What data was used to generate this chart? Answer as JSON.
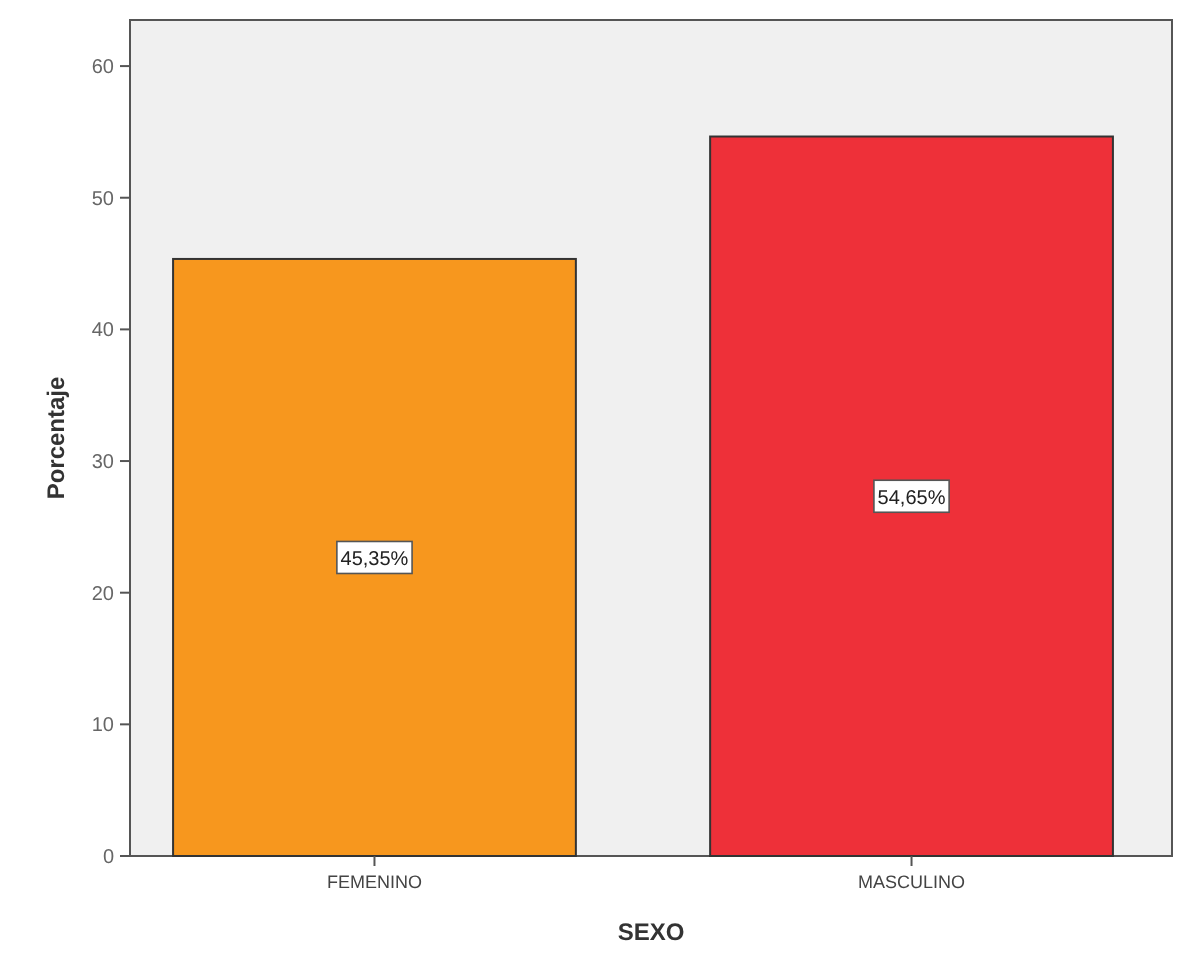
{
  "chart_data": {
    "type": "bar",
    "xlabel": "SEXO",
    "ylabel": "Porcentaje",
    "categories": [
      "FEMENINO",
      "MASCULINO"
    ],
    "values": [
      45.35,
      54.65
    ],
    "colors": [
      "#f7971e",
      "#ee3039"
    ],
    "value_labels": [
      "45,35%",
      "54,65%"
    ],
    "ylim": [
      0,
      63.5
    ],
    "yticks": [
      0,
      10,
      20,
      30,
      40,
      50,
      60
    ]
  }
}
